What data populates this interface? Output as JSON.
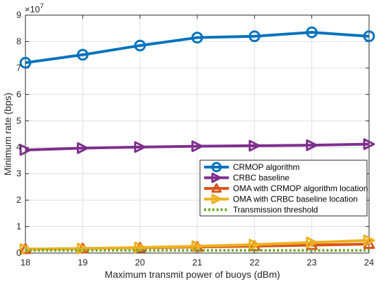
{
  "chart_data": {
    "type": "line",
    "title": "",
    "xlabel": "Maximum transmit power of buoys (dBm)",
    "ylabel": "Minimum rate (bps)",
    "y_exponent_label": "×10",
    "y_exponent_power": "7",
    "x": [
      18,
      19,
      20,
      21,
      22,
      23,
      24
    ],
    "x_ticks": [
      "18",
      "19",
      "20",
      "21",
      "22",
      "23",
      "24"
    ],
    "y_ticks": [
      "0",
      "1",
      "2",
      "3",
      "4",
      "5",
      "6",
      "7",
      "8",
      "9"
    ],
    "xlim": [
      18,
      24
    ],
    "ylim": [
      0,
      9
    ],
    "y_scale_factor": 10000000,
    "grid": true,
    "legend_position": "center-right",
    "series": [
      {
        "name": "CRMOP algorithm",
        "color": "#0072BD",
        "marker": "circle",
        "line": "solid",
        "values": [
          72000000,
          75000000,
          78500000,
          81500000,
          82000000,
          83500000,
          82000000
        ]
      },
      {
        "name": "CRBC baseline",
        "color": "#7E2F8E",
        "marker": "triangle-right",
        "line": "solid",
        "values": [
          39000000,
          39700000,
          40100000,
          40400000,
          40600000,
          40800000,
          41200000
        ]
      },
      {
        "name": "OMA with CRMOP algorithm location",
        "color": "#D95319",
        "marker": "triangle-up",
        "line": "solid",
        "values": [
          1500000,
          1700000,
          2000000,
          2300000,
          2600000,
          3000000,
          3400000
        ]
      },
      {
        "name": "OMA with CRBC baseline location",
        "color": "#EDB120",
        "marker": "triangle-right",
        "line": "solid",
        "values": [
          1500000,
          1700000,
          2100000,
          2600000,
          3200000,
          4000000,
          4800000
        ]
      },
      {
        "name": "Transmission threshold",
        "color": "#77AC30",
        "marker": "none",
        "line": "dotted",
        "values": [
          1000000,
          1000000,
          1000000,
          1000000,
          1000000,
          1000000,
          1000000
        ]
      }
    ]
  }
}
